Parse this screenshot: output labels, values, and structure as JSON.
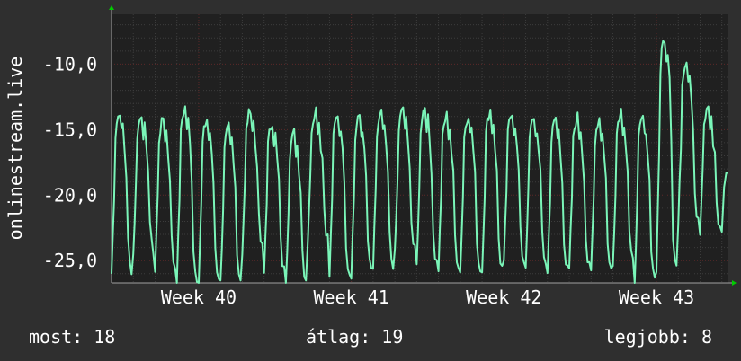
{
  "colors": {
    "background": "#2f2f2f",
    "plot_background": "#202020",
    "grid_minor": "#3c3c3c",
    "grid_major": "#5c2828",
    "line": "#7af5b8",
    "axis_arrow": "#00cc00",
    "text": "#ffffff"
  },
  "y_axis_label": "onlinestream.live",
  "stats": {
    "now": "most: 18",
    "average": "átlag: 19",
    "best": "legjobb: 8"
  },
  "chart_data": {
    "type": "line",
    "title": "",
    "xlabel": "",
    "ylabel": "onlinestream.live",
    "ylim": [
      -26.7,
      -6.2
    ],
    "xlim": [
      0,
      28.3
    ],
    "y_ticks": [
      -10,
      -15,
      -20,
      -25
    ],
    "y_tick_labels": [
      "-10,0",
      "-15,0",
      "-20,0",
      "-25,0"
    ],
    "x_ticks": [
      {
        "x": 4,
        "label": "Week 40"
      },
      {
        "x": 11,
        "label": "Week 41"
      },
      {
        "x": 18,
        "label": "Week 42"
      },
      {
        "x": 25,
        "label": "Week 43"
      }
    ],
    "grid": true,
    "series": [
      {
        "daily_cycles": [
          {
            "day": 0,
            "peak": -14.0,
            "trough": -26.0
          },
          {
            "day": 1,
            "peak": -14.2,
            "trough": -24.5
          },
          {
            "day": 2,
            "peak": -14.5,
            "trough": -25.8
          },
          {
            "day": 3,
            "peak": -13.7,
            "trough": -26.6
          },
          {
            "day": 4,
            "peak": -14.6,
            "trough": -26.5
          },
          {
            "day": 5,
            "peak": -15.2,
            "trough": -26.7
          },
          {
            "day": 6,
            "peak": -13.8,
            "trough": -24.3
          },
          {
            "day": 7,
            "peak": -14.8,
            "trough": -26.0
          },
          {
            "day": 8,
            "peak": -15.6,
            "trough": -26.7
          },
          {
            "day": 9,
            "peak": -13.8,
            "trough": -23.5
          },
          {
            "day": 10,
            "peak": -14.2,
            "trough": -26.2
          },
          {
            "day": 11,
            "peak": -14.3,
            "trough": -26.0
          },
          {
            "day": 12,
            "peak": -14.1,
            "trough": -25.6
          },
          {
            "day": 13,
            "peak": -13.7,
            "trough": -24.5
          },
          {
            "day": 14,
            "peak": -13.6,
            "trough": -25.4
          },
          {
            "day": 15,
            "peak": -14.3,
            "trough": -25.6
          },
          {
            "day": 16,
            "peak": -14.2,
            "trough": -25.9
          },
          {
            "day": 17,
            "peak": -13.9,
            "trough": -25.8
          },
          {
            "day": 18,
            "peak": -14.0,
            "trough": -25.3
          },
          {
            "day": 19,
            "peak": -14.4,
            "trough": -25.4
          },
          {
            "day": 20,
            "peak": -14.5,
            "trough": -26.0
          },
          {
            "day": 21,
            "peak": -14.4,
            "trough": -25.8
          },
          {
            "day": 22,
            "peak": -14.5,
            "trough": -26.0
          },
          {
            "day": 23,
            "peak": -13.9,
            "trough": -25.4
          },
          {
            "day": 24,
            "peak": -14.4,
            "trough": -26.5
          },
          {
            "day": 25,
            "peak": -8.4,
            "trough": -25.7
          },
          {
            "day": 26,
            "peak": -10.0,
            "trough": -22.3
          },
          {
            "day": 27,
            "peak": -13.6,
            "trough": -23.0
          }
        ],
        "end_value": -18.3
      }
    ]
  }
}
